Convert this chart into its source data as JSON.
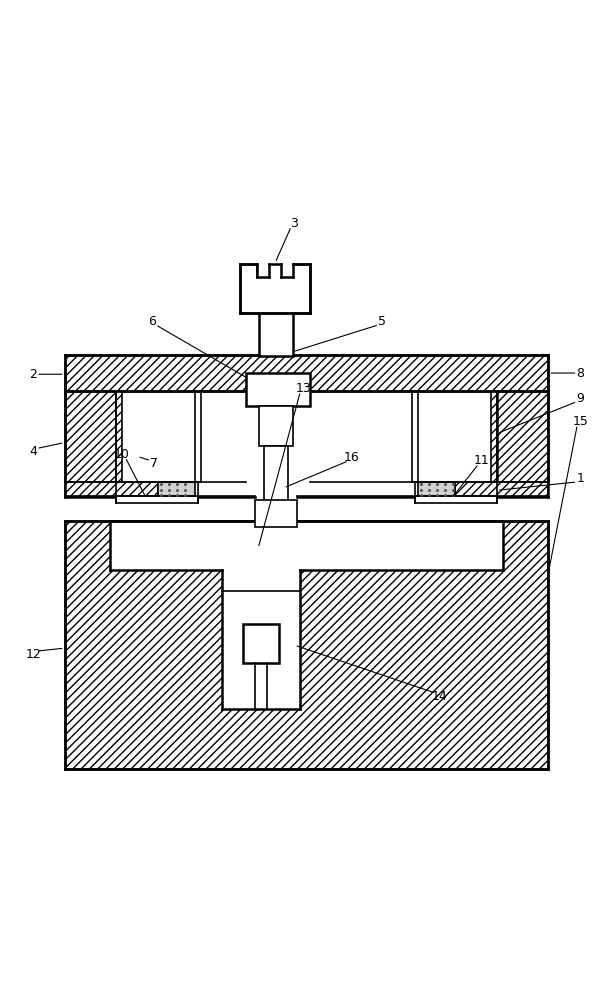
{
  "bg_color": "#ffffff",
  "line_color": "#000000",
  "fig_width": 6.13,
  "fig_height": 10.0,
  "dpi": 100
}
